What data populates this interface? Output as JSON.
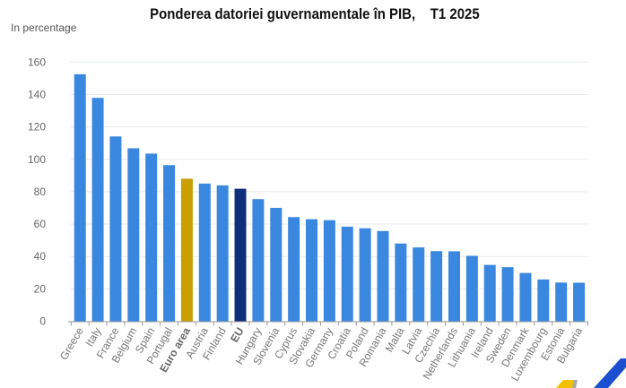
{
  "header": {
    "title": "Ponderea datoriei guvernamentale în PIB,    T1 2025",
    "unit_label": "In percentage"
  },
  "colors": {
    "country_bar": "#3A87E0",
    "euro_area_bar": "#C9A000",
    "eu_bar": "#0E2E7A",
    "gridline": "#E6ECF0",
    "axis": "#999999"
  },
  "chart_data": {
    "type": "bar",
    "title": "Ponderea datoriei guvernamentale în PIB,    T1 2025",
    "xlabel": "",
    "ylabel": "In percentage",
    "ylim": [
      0,
      160
    ],
    "yticks": [
      0,
      20,
      40,
      60,
      80,
      100,
      120,
      140,
      160
    ],
    "grid": true,
    "legend": "none",
    "categories": [
      "Greece",
      "Italy",
      "France",
      "Belgium",
      "Spain",
      "Portugal",
      "Euro area",
      "Austria",
      "Finland",
      "EU",
      "Hungary",
      "Slovenia",
      "Cyprus",
      "Slovakia",
      "Germany",
      "Croatia",
      "Poland",
      "Romania",
      "Malta",
      "Latvia",
      "Czechia",
      "Netherlands",
      "Lithuania",
      "Ireland",
      "Sweden",
      "Denmark",
      "Luxembourg",
      "Estonia",
      "Bulgaria"
    ],
    "values": [
      152.5,
      137.9,
      114.1,
      106.8,
      103.5,
      96.4,
      88.0,
      85.0,
      83.9,
      81.8,
      75.4,
      70.0,
      64.3,
      63.0,
      62.4,
      58.4,
      57.4,
      55.7,
      48.0,
      45.6,
      43.3,
      43.2,
      40.4,
      34.8,
      33.4,
      29.8,
      25.8,
      23.9,
      23.8
    ],
    "highlight": {
      "Euro area": "euro_area_bar",
      "EU": "eu_bar"
    },
    "bold_categories": [
      "Euro area",
      "EU"
    ]
  },
  "logo": {
    "icon": "brand-logo-corner"
  }
}
